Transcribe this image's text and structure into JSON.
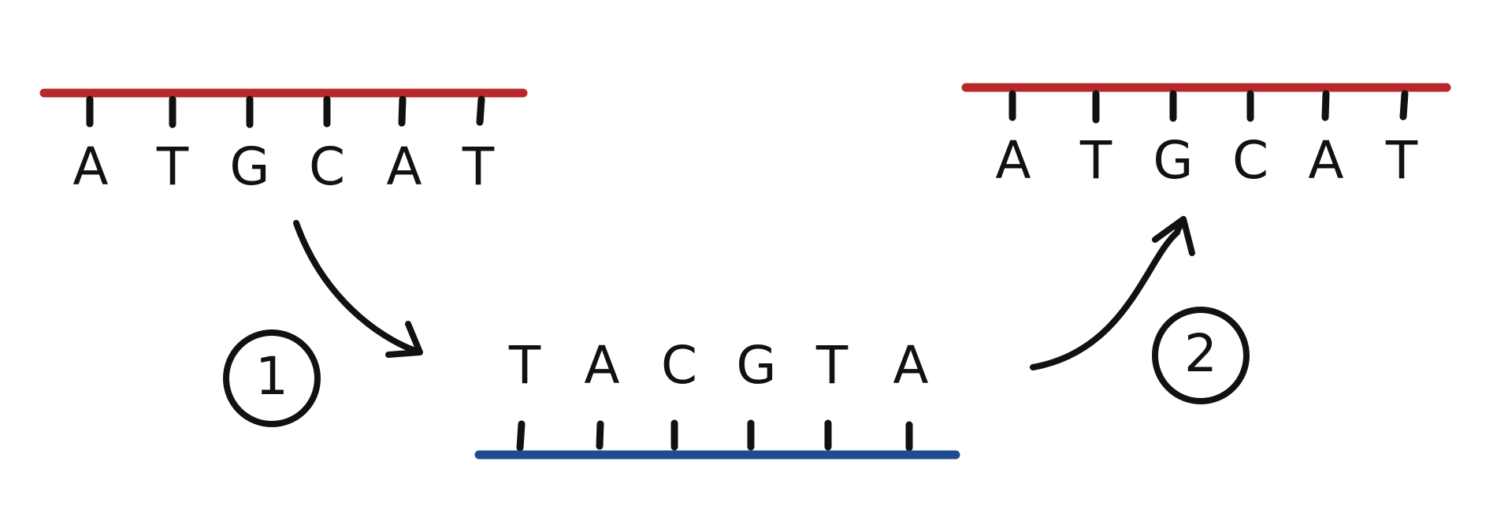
{
  "colors": {
    "template_strand": "#b8282a",
    "complementary_strand": "#1f4b8f",
    "ink": "#111111",
    "background": "#ffffff"
  },
  "strand_left": {
    "bases": [
      "A",
      "T",
      "G",
      "C",
      "A",
      "T"
    ]
  },
  "strand_middle": {
    "bases": [
      "T",
      "A",
      "C",
      "G",
      "T",
      "A"
    ]
  },
  "strand_right": {
    "bases": [
      "A",
      "T",
      "G",
      "C",
      "A",
      "T"
    ]
  },
  "steps": {
    "step_1": "1",
    "step_2": "2"
  }
}
